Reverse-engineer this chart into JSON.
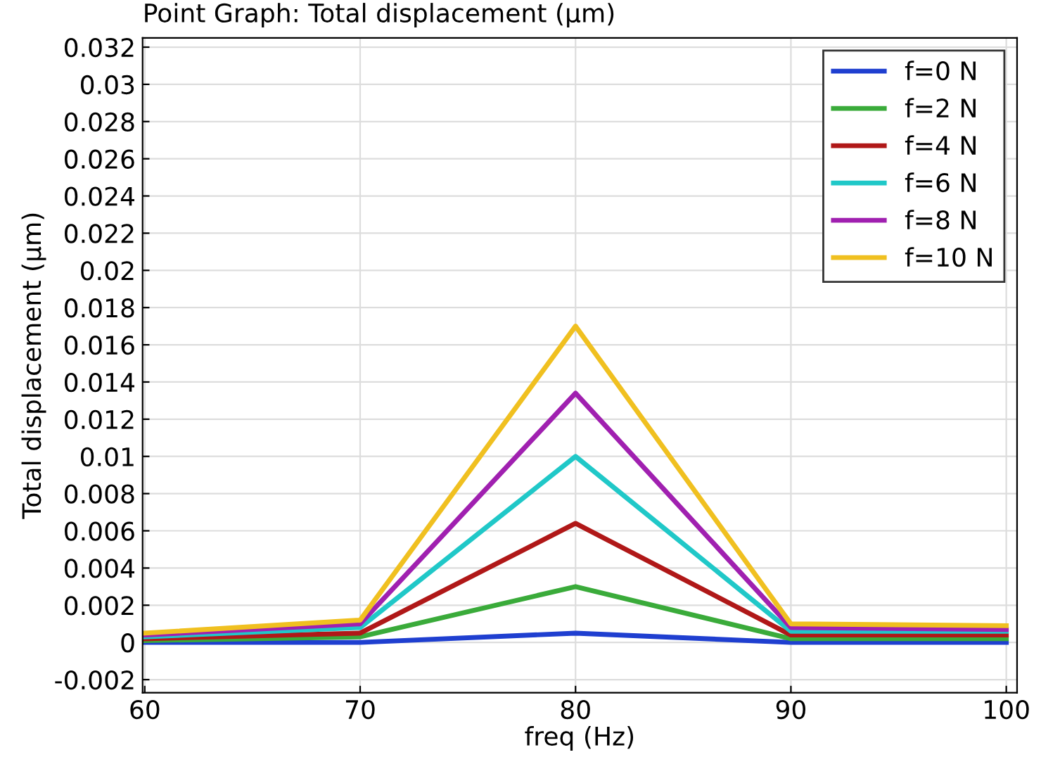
{
  "chart_data": {
    "type": "line",
    "title": "Point Graph: Total displacement (µm)",
    "xlabel": "freq (Hz)",
    "ylabel": "Total displacement (µm)",
    "x": [
      60,
      70,
      80,
      90,
      100
    ],
    "series": [
      {
        "name": "f=0 N",
        "color": "#1f3fd0",
        "values": [
          0,
          0,
          0.0005,
          0,
          0
        ]
      },
      {
        "name": "f=2 N",
        "color": "#3aab3a",
        "values": [
          0.0001,
          0.0003,
          0.003,
          0.0002,
          0.0002
        ]
      },
      {
        "name": "f=4 N",
        "color": "#b01818",
        "values": [
          0.0002,
          0.0005,
          0.0064,
          0.0004,
          0.0004
        ]
      },
      {
        "name": "f=6 N",
        "color": "#20c8c8",
        "values": [
          0.0003,
          0.0008,
          0.01,
          0.0006,
          0.0006
        ]
      },
      {
        "name": "f=8 N",
        "color": "#a020b0",
        "values": [
          0.0004,
          0.001,
          0.0134,
          0.0008,
          0.0007
        ]
      },
      {
        "name": "f=10 N",
        "color": "#f0c020",
        "values": [
          0.0005,
          0.0012,
          0.017,
          0.001,
          0.0009
        ]
      }
    ],
    "xlim": [
      59.9,
      100.5
    ],
    "xticks": [
      60,
      70,
      80,
      90,
      100
    ],
    "ylim": [
      -0.0027,
      0.0325
    ],
    "yticks": [
      -0.002,
      0,
      0.002,
      0.004,
      0.006,
      0.008,
      0.01,
      0.012,
      0.014,
      0.016,
      0.018,
      0.02,
      0.022,
      0.024,
      0.026,
      0.028,
      0.03,
      0.032
    ],
    "grid": true,
    "legend": "top right",
    "marker": "none",
    "line_style": "solid"
  }
}
